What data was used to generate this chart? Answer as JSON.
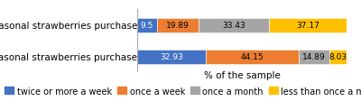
{
  "categories": [
    "non-seasonal strawberries purchase",
    "seasonal strawberries purchase"
  ],
  "series": {
    "twice or more a week": [
      9.5,
      32.93
    ],
    "once a week": [
      19.89,
      44.15
    ],
    "once a month": [
      33.43,
      14.89
    ],
    "less than once a month": [
      37.17,
      8.03
    ]
  },
  "colors": {
    "twice or more a week": "#4472C4",
    "once a week": "#ED7D31",
    "once a month": "#A5A5A5",
    "less than once a month": "#FFC000"
  },
  "xlabel": "% of the sample",
  "legend_labels": [
    "twice or more a week",
    "once a week",
    "once a month",
    "less than once a month"
  ],
  "bar_height": 0.45,
  "text_fontsize": 6.5,
  "label_fontsize": 7.5,
  "legend_fontsize": 7.0,
  "figsize": [
    4.0,
    1.13
  ],
  "dpi": 100,
  "bg_color": "#FFFFFF"
}
